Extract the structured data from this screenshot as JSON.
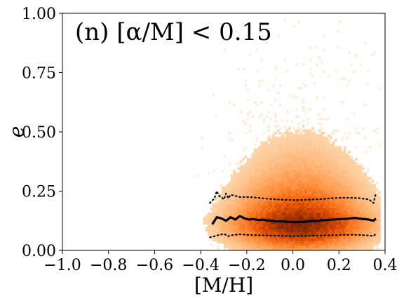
{
  "chart_data": {
    "type": "heatmap",
    "title": "(n) [α/M] < 0.15",
    "xlabel": "[M/H]",
    "ylabel": "e",
    "xlim": [
      -1.0,
      0.4
    ],
    "ylim": [
      0.0,
      1.0
    ],
    "xticks": [
      -1.0,
      -0.8,
      -0.6,
      -0.4,
      -0.2,
      0.0,
      0.2,
      0.4
    ],
    "xtick_labels": [
      "−1.0",
      "−0.8",
      "−0.6",
      "−0.4",
      "−0.2",
      "0.0",
      "0.2",
      "0.4"
    ],
    "yticks": [
      0.0,
      0.25,
      0.5,
      0.75,
      1.0
    ],
    "ytick_labels": [
      "0.00",
      "0.25",
      "0.50",
      "0.75",
      "1.00"
    ],
    "grid": false,
    "colormap": "Oranges",
    "density": {
      "x_center": 0.03,
      "y_center": 0.12,
      "x_extent": [
        -0.42,
        0.38
      ],
      "y_extent": [
        0.0,
        1.0
      ]
    },
    "series": [
      {
        "style": "solid",
        "color": "#000000",
        "x": [
          -0.35,
          -0.33,
          -0.31,
          -0.29,
          -0.27,
          -0.25,
          -0.23,
          -0.21,
          -0.19,
          -0.17,
          -0.15,
          -0.13,
          -0.11,
          -0.09,
          -0.07,
          -0.05,
          -0.03,
          -0.01,
          0.01,
          0.03,
          0.05,
          0.07,
          0.09,
          0.11,
          0.13,
          0.15,
          0.17,
          0.19,
          0.21,
          0.23,
          0.25,
          0.27,
          0.29,
          0.31,
          0.33,
          0.35,
          0.36
        ],
        "y": [
          0.11,
          0.14,
          0.135,
          0.125,
          0.14,
          0.13,
          0.145,
          0.135,
          0.13,
          0.132,
          0.128,
          0.13,
          0.126,
          0.125,
          0.122,
          0.123,
          0.121,
          0.12,
          0.119,
          0.12,
          0.121,
          0.123,
          0.124,
          0.125,
          0.127,
          0.128,
          0.13,
          0.131,
          0.132,
          0.133,
          0.135,
          0.137,
          0.134,
          0.132,
          0.13,
          0.125,
          0.135
        ]
      },
      {
        "style": "dotted",
        "color": "#000000",
        "x": [
          -0.36,
          -0.34,
          -0.33,
          -0.32,
          -0.31,
          -0.3,
          -0.29,
          -0.28,
          -0.27,
          -0.25,
          -0.23,
          -0.21,
          -0.19,
          -0.15,
          -0.11,
          -0.07,
          -0.03,
          0.01,
          0.05,
          0.09,
          0.13,
          0.17,
          0.21,
          0.25,
          0.29,
          0.33,
          0.35,
          0.36
        ],
        "y": [
          0.2,
          0.22,
          0.25,
          0.23,
          0.225,
          0.215,
          0.24,
          0.22,
          0.235,
          0.23,
          0.225,
          0.225,
          0.225,
          0.222,
          0.218,
          0.215,
          0.213,
          0.212,
          0.213,
          0.215,
          0.217,
          0.22,
          0.222,
          0.222,
          0.22,
          0.215,
          0.2,
          0.24
        ]
      },
      {
        "style": "dotted",
        "color": "#000000",
        "x": [
          -0.36,
          -0.34,
          -0.32,
          -0.3,
          -0.28,
          -0.26,
          -0.23,
          -0.19,
          -0.15,
          -0.11,
          -0.07,
          -0.03,
          0.01,
          0.05,
          0.09,
          0.13,
          0.17,
          0.21,
          0.25,
          0.29,
          0.33,
          0.35,
          0.36
        ],
        "y": [
          0.055,
          0.06,
          0.065,
          0.07,
          0.06,
          0.065,
          0.068,
          0.065,
          0.064,
          0.063,
          0.062,
          0.061,
          0.06,
          0.061,
          0.062,
          0.063,
          0.064,
          0.065,
          0.066,
          0.065,
          0.063,
          0.06,
          0.07
        ]
      }
    ]
  }
}
